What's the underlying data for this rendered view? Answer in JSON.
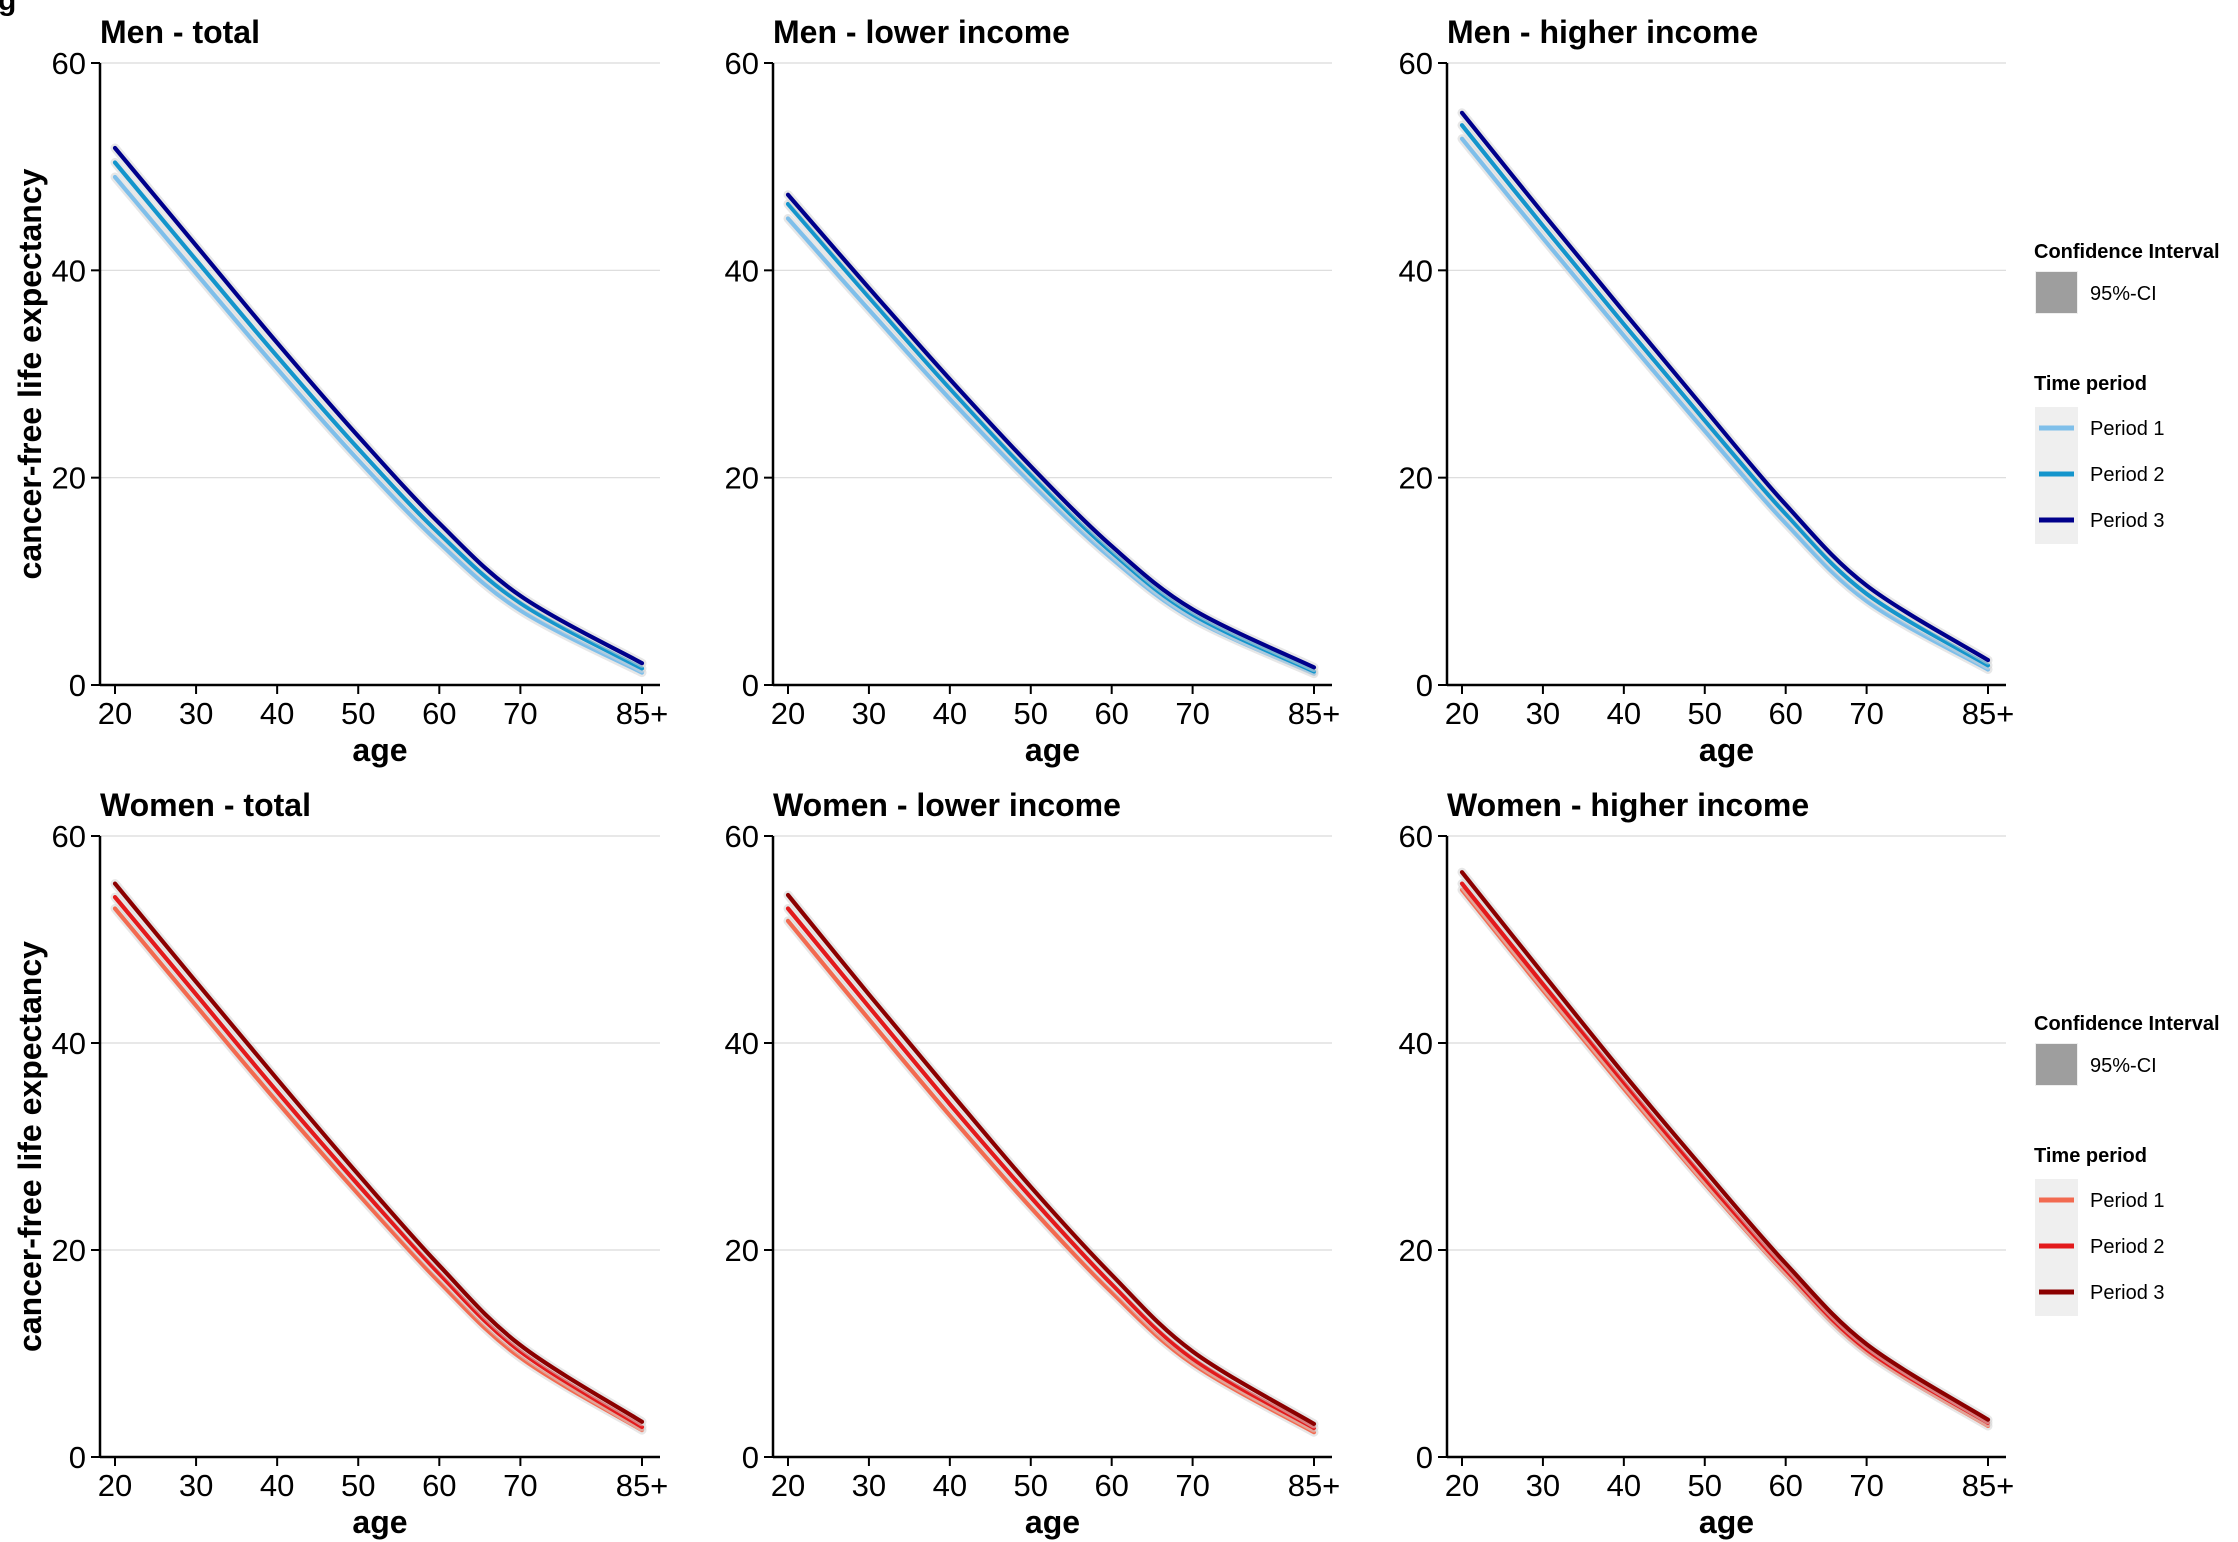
{
  "figure_title_partial": "g",
  "y_label": "cancer-free life expectancy",
  "x_label": "age",
  "legend": {
    "ci_title": "Confidence Interval",
    "ci_label": "95%-CI",
    "ci_color": "#9e9e9e",
    "period_title": "Time period",
    "period_labels": [
      "Period 1",
      "Period 2",
      "Period 3"
    ]
  },
  "colors": {
    "men": [
      "#7fbfea",
      "#1495cc",
      "#00008b"
    ],
    "women": [
      "#f26a50",
      "#e31a1c",
      "#8b0000"
    ],
    "ci_band": "#d3d3d3",
    "grid": "#d9d9d9",
    "legend_bg": "#efefef"
  },
  "chart_data": [
    {
      "type": "line",
      "title": "Men - total",
      "xlabel": "age",
      "ylabel": "cancer-free life expectancy",
      "xlim": [
        20,
        85
      ],
      "ylim": [
        0,
        60
      ],
      "x_ticks": [
        20,
        30,
        40,
        50,
        60,
        70,
        85
      ],
      "x_tick_labels": [
        "20",
        "30",
        "40",
        "50",
        "60",
        "70",
        "85+"
      ],
      "y_ticks": [
        0,
        20,
        40,
        60
      ],
      "grid_y": true,
      "legend": "right",
      "x": [
        20,
        30,
        40,
        50,
        60,
        70,
        85
      ],
      "series": [
        {
          "name": "Period 1",
          "values": [
            49.0,
            39.7,
            30.5,
            21.7,
            13.7,
            7.2,
            1.2
          ]
        },
        {
          "name": "Period 2",
          "values": [
            50.4,
            41.0,
            31.7,
            22.8,
            14.6,
            7.9,
            1.6
          ]
        },
        {
          "name": "Period 3",
          "values": [
            51.8,
            42.4,
            33.0,
            24.0,
            15.6,
            8.6,
            2.1
          ]
        }
      ]
    },
    {
      "type": "line",
      "title": "Men - lower income",
      "xlabel": "age",
      "ylabel": "",
      "xlim": [
        20,
        85
      ],
      "ylim": [
        0,
        60
      ],
      "x_ticks": [
        20,
        30,
        40,
        50,
        60,
        70,
        85
      ],
      "x_tick_labels": [
        "20",
        "30",
        "40",
        "50",
        "60",
        "70",
        "85+"
      ],
      "y_ticks": [
        0,
        20,
        40,
        60
      ],
      "grid_y": true,
      "legend": "right",
      "x": [
        20,
        30,
        40,
        50,
        60,
        70,
        85
      ],
      "series": [
        {
          "name": "Period 1",
          "values": [
            45.0,
            36.2,
            27.6,
            19.5,
            12.2,
            6.4,
            1.1
          ]
        },
        {
          "name": "Period 2",
          "values": [
            46.4,
            37.4,
            28.6,
            20.3,
            12.8,
            6.8,
            1.3
          ]
        },
        {
          "name": "Period 3",
          "values": [
            47.3,
            38.3,
            29.5,
            21.1,
            13.4,
            7.3,
            1.7
          ]
        }
      ]
    },
    {
      "type": "line",
      "title": "Men - higher income",
      "xlabel": "age",
      "ylabel": "",
      "xlim": [
        20,
        85
      ],
      "ylim": [
        0,
        60
      ],
      "x_ticks": [
        20,
        30,
        40,
        50,
        60,
        70,
        85
      ],
      "x_tick_labels": [
        "20",
        "30",
        "40",
        "50",
        "60",
        "70",
        "85+"
      ],
      "y_ticks": [
        0,
        20,
        40,
        60
      ],
      "grid_y": true,
      "legend": "right",
      "x": [
        20,
        30,
        40,
        50,
        60,
        70,
        85
      ],
      "series": [
        {
          "name": "Period 1",
          "values": [
            52.7,
            43.1,
            33.7,
            24.5,
            15.6,
            8.1,
            1.5
          ]
        },
        {
          "name": "Period 2",
          "values": [
            54.0,
            44.3,
            34.8,
            25.5,
            16.5,
            8.8,
            1.9
          ]
        },
        {
          "name": "Period 3",
          "values": [
            55.2,
            45.5,
            36.0,
            26.6,
            17.4,
            9.6,
            2.4
          ]
        }
      ]
    },
    {
      "type": "line",
      "title": "Women - total",
      "xlabel": "age",
      "ylabel": "cancer-free life expectancy",
      "xlim": [
        20,
        85
      ],
      "ylim": [
        0,
        60
      ],
      "x_ticks": [
        20,
        30,
        40,
        50,
        60,
        70,
        85
      ],
      "x_tick_labels": [
        "20",
        "30",
        "40",
        "50",
        "60",
        "70",
        "85+"
      ],
      "y_ticks": [
        0,
        20,
        40,
        60
      ],
      "grid_y": true,
      "legend": "right",
      "x": [
        20,
        30,
        40,
        50,
        60,
        70,
        85
      ],
      "series": [
        {
          "name": "Period 1",
          "values": [
            53.0,
            43.6,
            34.3,
            25.4,
            16.9,
            9.6,
            2.6
          ]
        },
        {
          "name": "Period 2",
          "values": [
            54.1,
            44.7,
            35.3,
            26.3,
            17.7,
            10.2,
            2.9
          ]
        },
        {
          "name": "Period 3",
          "values": [
            55.4,
            45.9,
            36.5,
            27.3,
            18.5,
            10.8,
            3.4
          ]
        }
      ]
    },
    {
      "type": "line",
      "title": "Women - lower income",
      "xlabel": "age",
      "ylabel": "",
      "xlim": [
        20,
        85
      ],
      "ylim": [
        0,
        60
      ],
      "x_ticks": [
        20,
        30,
        40,
        50,
        60,
        70,
        85
      ],
      "x_tick_labels": [
        "20",
        "30",
        "40",
        "50",
        "60",
        "70",
        "85+"
      ],
      "y_ticks": [
        0,
        20,
        40,
        60
      ],
      "grid_y": true,
      "legend": "right",
      "x": [
        20,
        30,
        40,
        50,
        60,
        70,
        85
      ],
      "series": [
        {
          "name": "Period 1",
          "values": [
            51.8,
            42.3,
            33.0,
            24.1,
            15.9,
            9.0,
            2.4
          ]
        },
        {
          "name": "Period 2",
          "values": [
            53.0,
            43.5,
            34.1,
            25.1,
            16.7,
            9.5,
            2.8
          ]
        },
        {
          "name": "Period 3",
          "values": [
            54.3,
            44.7,
            35.3,
            26.1,
            17.6,
            10.2,
            3.2
          ]
        }
      ]
    },
    {
      "type": "line",
      "title": "Women - higher income",
      "xlabel": "age",
      "ylabel": "",
      "xlim": [
        20,
        85
      ],
      "ylim": [
        0,
        60
      ],
      "x_ticks": [
        20,
        30,
        40,
        50,
        60,
        70,
        85
      ],
      "x_tick_labels": [
        "20",
        "30",
        "40",
        "50",
        "60",
        "70",
        "85+"
      ],
      "y_ticks": [
        0,
        20,
        40,
        60
      ],
      "grid_y": true,
      "legend": "right",
      "x": [
        20,
        30,
        40,
        50,
        60,
        70,
        85
      ],
      "series": [
        {
          "name": "Period 1",
          "values": [
            54.8,
            45.1,
            35.6,
            26.4,
            17.7,
            10.1,
            3.0
          ]
        },
        {
          "name": "Period 2",
          "values": [
            55.4,
            45.7,
            36.2,
            26.9,
            18.1,
            10.4,
            3.3
          ]
        },
        {
          "name": "Period 3",
          "values": [
            56.5,
            46.7,
            37.0,
            27.7,
            18.7,
            10.9,
            3.6
          ]
        }
      ]
    }
  ]
}
